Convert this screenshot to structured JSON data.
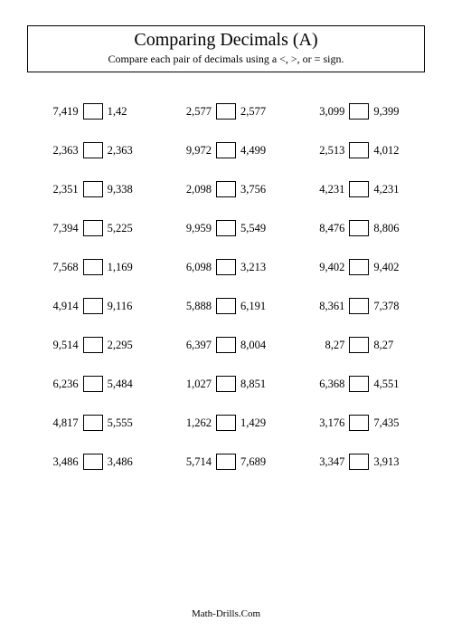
{
  "header": {
    "title": "Comparing Decimals (A)",
    "instructions": "Compare each pair of decimals using a <, >, or = sign."
  },
  "footer": {
    "text": "Math-Drills.Com"
  },
  "style": {
    "page_bg": "#ffffff",
    "text_color": "#000000",
    "border_color": "#000000",
    "font_family": "Times New Roman",
    "title_fontsize": 20,
    "instruction_fontsize": 12,
    "problem_fontsize": 12.5,
    "footer_fontsize": 11,
    "columns": 3,
    "rows": 10,
    "answer_box": {
      "width": 22,
      "height": 18,
      "border": "1px solid #000000"
    }
  },
  "problems": [
    {
      "left": "7,419",
      "right": "1,42"
    },
    {
      "left": "2,577",
      "right": "2,577"
    },
    {
      "left": "3,099",
      "right": "9,399"
    },
    {
      "left": "2,363",
      "right": "2,363"
    },
    {
      "left": "9,972",
      "right": "4,499"
    },
    {
      "left": "2,513",
      "right": "4,012"
    },
    {
      "left": "2,351",
      "right": "9,338"
    },
    {
      "left": "2,098",
      "right": "3,756"
    },
    {
      "left": "4,231",
      "right": "4,231"
    },
    {
      "left": "7,394",
      "right": "5,225"
    },
    {
      "left": "9,959",
      "right": "5,549"
    },
    {
      "left": "8,476",
      "right": "8,806"
    },
    {
      "left": "7,568",
      "right": "1,169"
    },
    {
      "left": "6,098",
      "right": "3,213"
    },
    {
      "left": "9,402",
      "right": "9,402"
    },
    {
      "left": "4,914",
      "right": "9,116"
    },
    {
      "left": "5,888",
      "right": "6,191"
    },
    {
      "left": "8,361",
      "right": "7,378"
    },
    {
      "left": "9,514",
      "right": "2,295"
    },
    {
      "left": "6,397",
      "right": "8,004"
    },
    {
      "left": "8,27",
      "right": "8,27"
    },
    {
      "left": "6,236",
      "right": "5,484"
    },
    {
      "left": "1,027",
      "right": "8,851"
    },
    {
      "left": "6,368",
      "right": "4,551"
    },
    {
      "left": "4,817",
      "right": "5,555"
    },
    {
      "left": "1,262",
      "right": "1,429"
    },
    {
      "left": "3,176",
      "right": "7,435"
    },
    {
      "left": "3,486",
      "right": "3,486"
    },
    {
      "left": "5,714",
      "right": "7,689"
    },
    {
      "left": "3,347",
      "right": "3,913"
    }
  ]
}
